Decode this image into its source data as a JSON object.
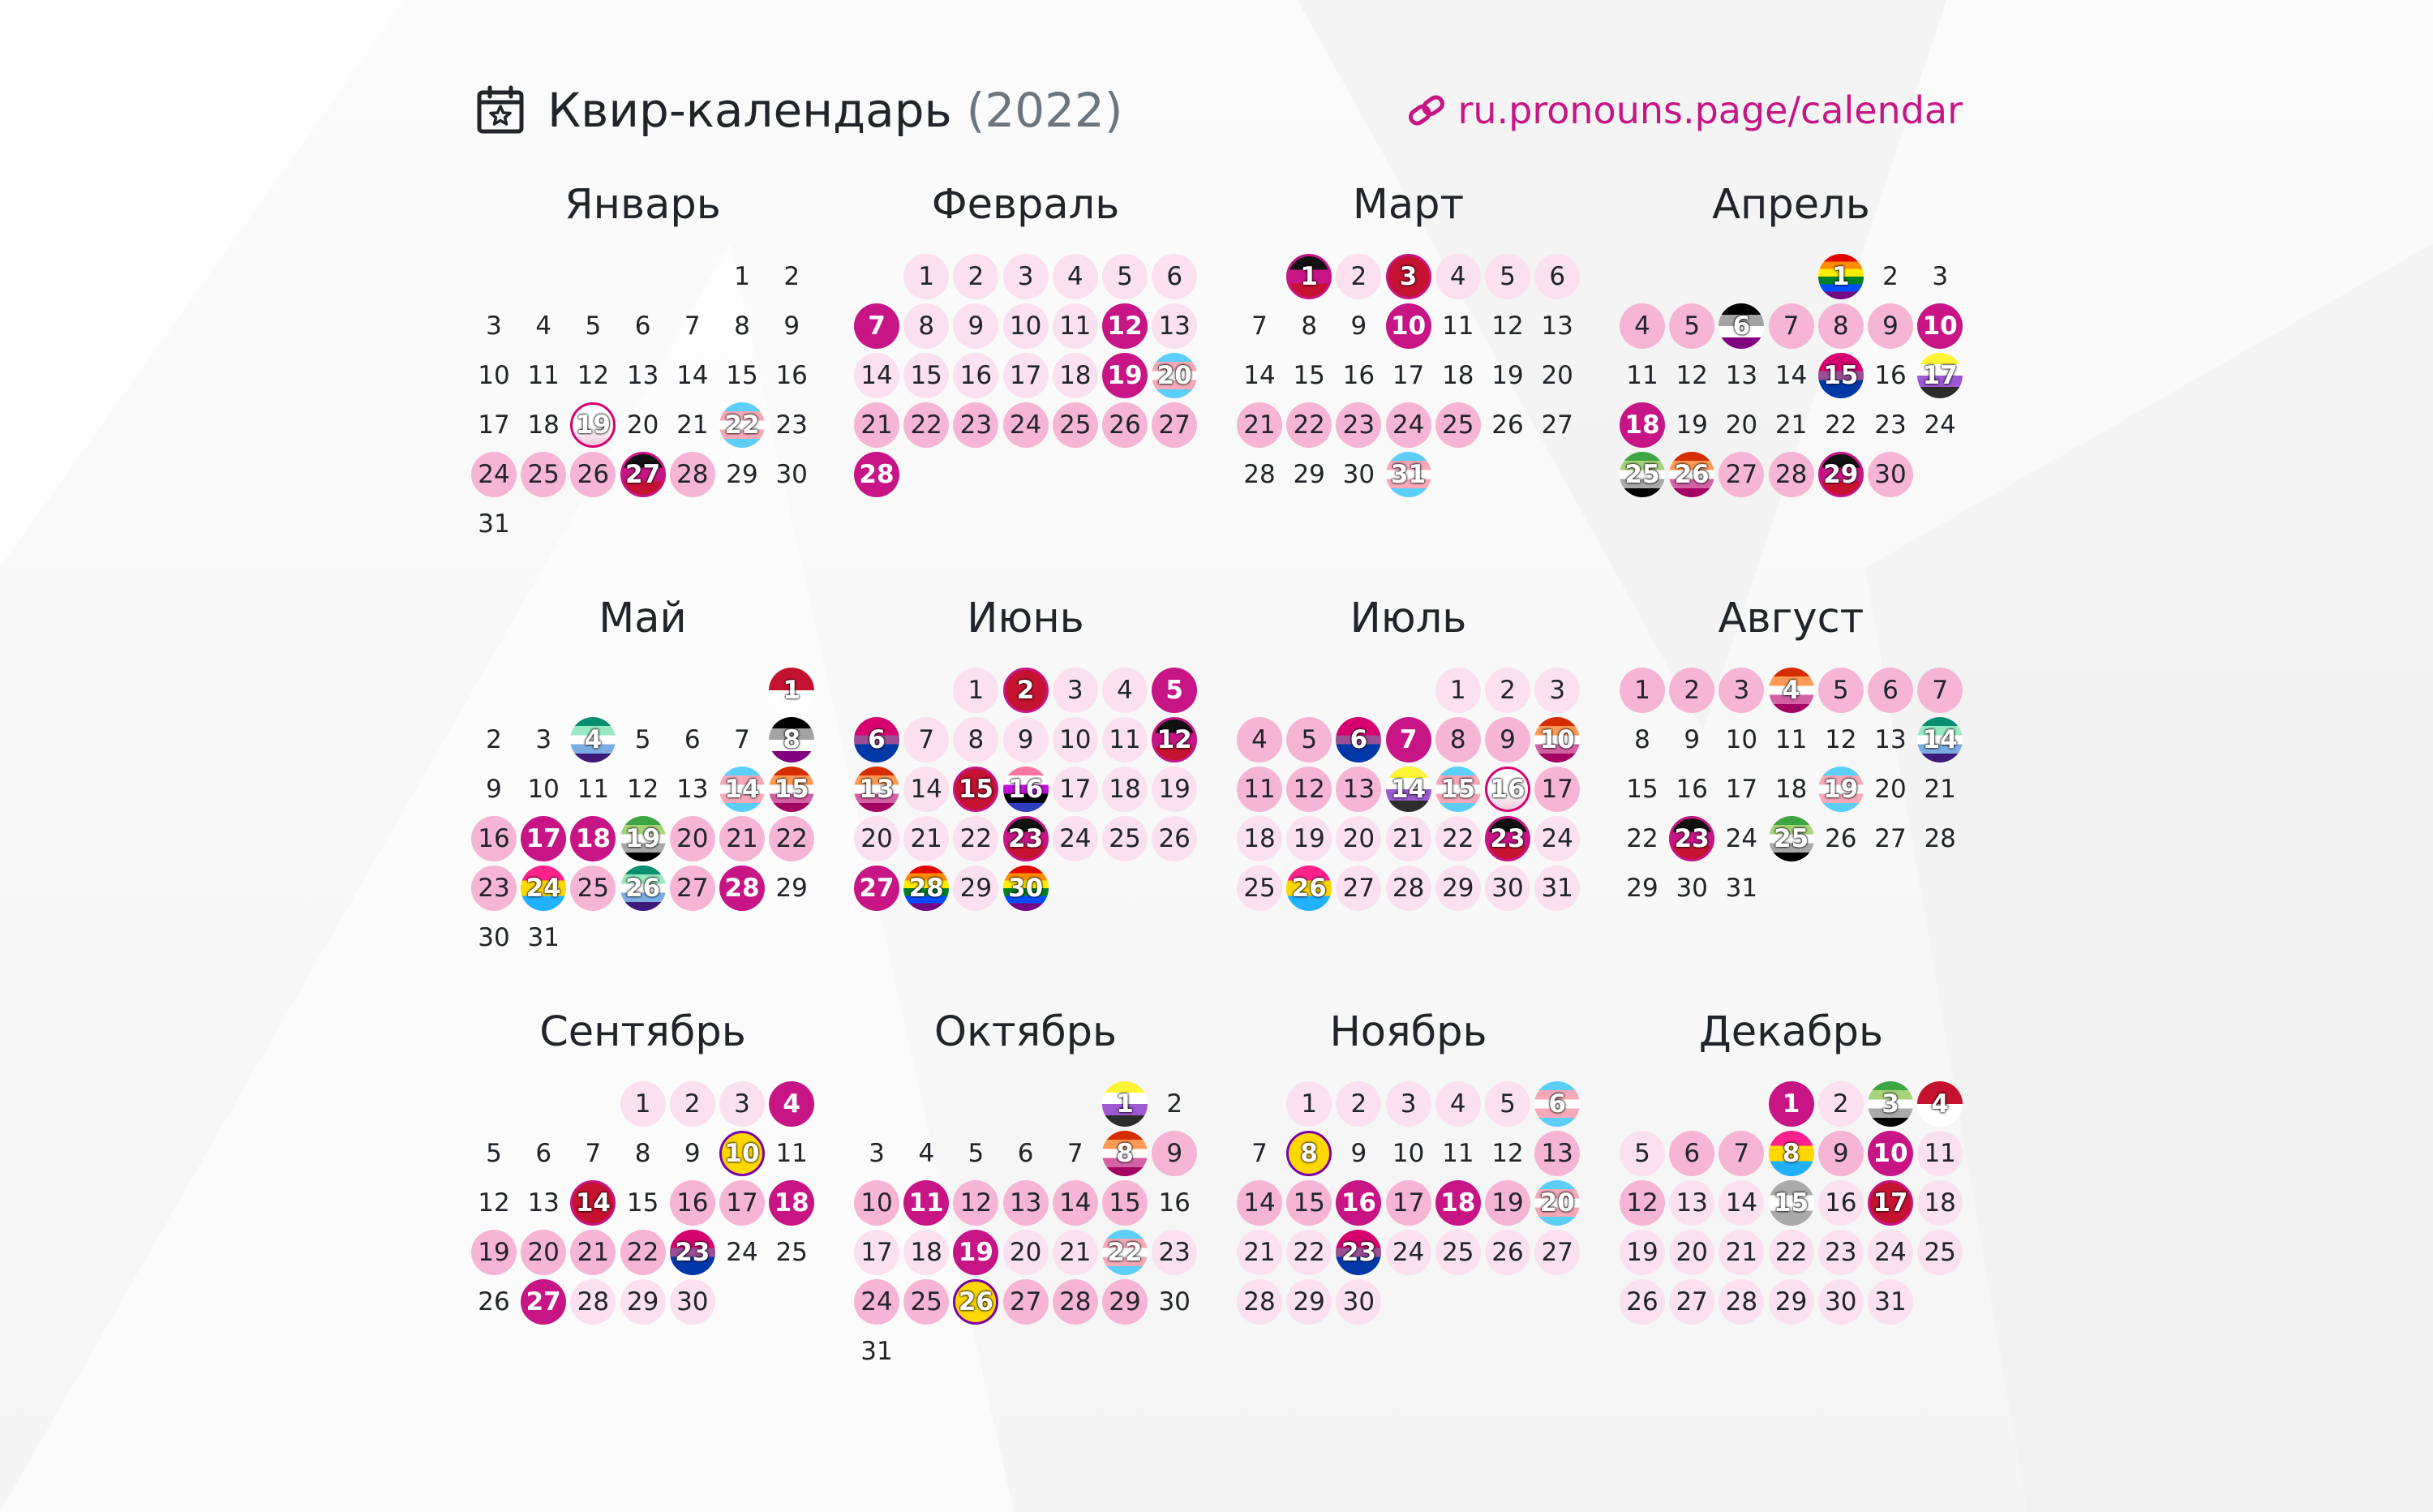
{
  "header": {
    "title": "Квир-календарь",
    "year": "(2022)",
    "url": "ru.pronouns.page/calendar",
    "icons": [
      "calendar-star-icon",
      "link-icon"
    ],
    "accent_color": "#c71585"
  },
  "colors": {
    "light": "#fbe1ef",
    "medium": "#f6b5d5",
    "strong": "#c71585",
    "text": "#212529",
    "muted": "#6c757d"
  },
  "flags": {
    "rainbow": [
      "#e40303",
      "#ff8c00",
      "#ffed00",
      "#008026",
      "#004dff",
      "#750787"
    ],
    "progress": [
      "#e40303",
      "#ff8c00",
      "#ffed00",
      "#008026",
      "#004dff",
      "#750787"
    ],
    "trans": [
      "#5bcefa",
      "#f5a9b8",
      "#ffffff",
      "#f5a9b8",
      "#5bcefa"
    ],
    "bi": [
      "#d60270",
      "#d60270",
      "#9b4f96",
      "#0038a8",
      "#0038a8"
    ],
    "pan": [
      "#ff218c",
      "#ffd800",
      "#21b1ff"
    ],
    "ace": [
      "#000000",
      "#a3a3a3",
      "#ffffff",
      "#800080"
    ],
    "aro": [
      "#3da542",
      "#a7d379",
      "#ffffff",
      "#a9a9a9",
      "#000000"
    ],
    "lesbian": [
      "#d52d00",
      "#ff9a56",
      "#ffffff",
      "#d362a4",
      "#a30262"
    ],
    "nonbinary": [
      "#fcf434",
      "#ffffff",
      "#9c59d1",
      "#2c2c2c"
    ],
    "genderfluid": [
      "#ff76a4",
      "#ffffff",
      "#c011d7",
      "#000000",
      "#2f3cbe"
    ],
    "mlm": [
      "#078d70",
      "#98e8c1",
      "#ffffff",
      "#7bade2",
      "#3d1a78"
    ],
    "intersex": [
      "#ffd800"
    ],
    "agender": [
      "#000000",
      "#bcc4c7",
      "#ffffff",
      "#b7f684",
      "#ffffff",
      "#bcc4c7",
      "#000000"
    ],
    "polyam": [
      "#0000ff",
      "#ff0000",
      "#000000"
    ],
    "redribbon": [
      "#c41230"
    ],
    "blackmix": [
      "#111111",
      "#c71585",
      "#c41230"
    ],
    "hiv": [
      "#c41230",
      "#ffffff"
    ],
    "greyace": [
      "#aaaaaa",
      "#ffffff",
      "#aaaaaa"
    ]
  },
  "months": [
    {
      "name": "Январь",
      "start": 5,
      "days": 31,
      "events": {
        "19": "bi-white",
        "22": "trans",
        "24": "medium",
        "25": "medium",
        "26": "medium",
        "27": "blackmix",
        "28": "medium"
      }
    },
    {
      "name": "Февраль",
      "start": 1,
      "days": 28,
      "events": {
        "1": "light",
        "2": "light",
        "3": "light",
        "4": "light",
        "5": "light",
        "6": "light",
        "7": "strong",
        "8": "light",
        "9": "light",
        "10": "light",
        "11": "light",
        "12": "strong",
        "13": "light",
        "14": "light",
        "15": "light",
        "16": "light",
        "17": "light",
        "18": "light",
        "19": "strong",
        "20": "trans",
        "21": "medium",
        "22": "medium",
        "23": "medium",
        "24": "medium",
        "25": "medium",
        "26": "medium",
        "27": "medium",
        "28": "strong"
      }
    },
    {
      "name": "Март",
      "start": 1,
      "days": 31,
      "events": {
        "1": "blackmix",
        "2": "light",
        "3": "redribbon",
        "4": "light",
        "5": "light",
        "6": "light",
        "10": "strong",
        "21": "medium",
        "22": "medium",
        "23": "medium",
        "24": "medium",
        "25": "medium",
        "31": "trans"
      }
    },
    {
      "name": "Апрель",
      "start": 4,
      "days": 30,
      "events": {
        "1": "rainbow",
        "4": "medium",
        "5": "medium",
        "6": "ace",
        "7": "medium",
        "8": "medium",
        "9": "medium",
        "10": "strong",
        "15": "bi",
        "17": "nonbinary",
        "18": "strong",
        "25": "aro",
        "26": "lesbian",
        "27": "medium",
        "28": "medium",
        "29": "blackmix",
        "30": "medium"
      }
    },
    {
      "name": "Май",
      "start": 6,
      "days": 31,
      "events": {
        "1": "hiv",
        "4": "mlm",
        "8": "ace",
        "14": "trans",
        "15": "lesbian",
        "16": "medium",
        "17": "strong",
        "18": "strong",
        "19": "aro",
        "20": "medium",
        "21": "medium",
        "22": "medium",
        "23": "medium",
        "24": "pan",
        "25": "medium",
        "26": "mlm",
        "27": "medium",
        "28": "strong"
      }
    },
    {
      "name": "Июнь",
      "start": 2,
      "days": 30,
      "events": {
        "1": "light",
        "2": "redribbon",
        "3": "light",
        "4": "light",
        "5": "strong",
        "6": "bi",
        "7": "light",
        "8": "light",
        "9": "light",
        "10": "light",
        "11": "light",
        "12": "blackmix",
        "13": "lesbian",
        "14": "light",
        "15": "redribbon",
        "16": "genderfluid",
        "17": "light",
        "18": "light",
        "19": "light",
        "20": "light",
        "21": "light",
        "22": "light",
        "23": "blackmix",
        "24": "light",
        "25": "light",
        "26": "light",
        "27": "strong",
        "28": "progress",
        "29": "light",
        "30": "rainbow"
      }
    },
    {
      "name": "Июль",
      "start": 4,
      "days": 31,
      "events": {
        "1": "light",
        "2": "light",
        "3": "light",
        "4": "medium",
        "5": "medium",
        "6": "bi",
        "7": "strong",
        "8": "medium",
        "9": "medium",
        "10": "lesbian",
        "11": "medium",
        "12": "medium",
        "13": "medium",
        "14": "nonbinary",
        "15": "trans",
        "16": "bi-white",
        "17": "medium",
        "18": "light",
        "19": "light",
        "20": "light",
        "21": "light",
        "22": "light",
        "23": "blackmix",
        "24": "light",
        "25": "light",
        "26": "pan",
        "27": "light",
        "28": "light",
        "29": "light",
        "30": "light",
        "31": "light"
      }
    },
    {
      "name": "Август",
      "start": 0,
      "days": 31,
      "events": {
        "1": "medium",
        "2": "medium",
        "3": "medium",
        "4": "lesbian",
        "5": "medium",
        "6": "medium",
        "7": "medium",
        "14": "mlm",
        "19": "trans",
        "23": "blackmix",
        "25": "aro"
      }
    },
    {
      "name": "Сентябрь",
      "start": 3,
      "days": 30,
      "events": {
        "1": "light",
        "2": "light",
        "3": "light",
        "4": "strong",
        "10": "intersex",
        "14": "redribbon",
        "16": "medium",
        "17": "medium",
        "18": "strong",
        "19": "medium",
        "20": "medium",
        "21": "medium",
        "22": "medium",
        "23": "bi",
        "27": "strong",
        "28": "light",
        "29": "light",
        "30": "light"
      }
    },
    {
      "name": "Октябрь",
      "start": 5,
      "days": 31,
      "events": {
        "1": "nonbinary",
        "8": "lesbian",
        "9": "medium",
        "10": "medium",
        "11": "strong",
        "12": "medium",
        "13": "medium",
        "14": "medium",
        "15": "medium",
        "17": "light",
        "18": "light",
        "19": "strong",
        "20": "light",
        "21": "light",
        "22": "trans",
        "23": "light",
        "24": "medium",
        "25": "medium",
        "26": "intersex",
        "27": "medium",
        "28": "medium",
        "29": "medium"
      }
    },
    {
      "name": "Ноябрь",
      "start": 1,
      "days": 30,
      "events": {
        "1": "light",
        "2": "light",
        "3": "light",
        "4": "light",
        "5": "light",
        "6": "trans",
        "8": "intersex",
        "13": "medium",
        "14": "medium",
        "15": "medium",
        "16": "strong",
        "17": "medium",
        "18": "strong",
        "19": "medium",
        "20": "trans",
        "21": "light",
        "22": "light",
        "23": "bi",
        "24": "light",
        "25": "light",
        "26": "light",
        "27": "light",
        "28": "light",
        "29": "light",
        "30": "light"
      }
    },
    {
      "name": "Декабрь",
      "start": 3,
      "days": 31,
      "events": {
        "1": "strong",
        "2": "light",
        "3": "aro",
        "4": "hiv",
        "5": "light",
        "6": "medium",
        "7": "medium",
        "8": "pan",
        "9": "medium",
        "10": "strong",
        "11": "light",
        "12": "medium",
        "13": "light",
        "14": "light",
        "15": "greyace",
        "16": "light",
        "17": "redribbon",
        "18": "light",
        "19": "light",
        "20": "light",
        "21": "light",
        "22": "light",
        "23": "light",
        "24": "light",
        "25": "light",
        "26": "light",
        "27": "light",
        "28": "light",
        "29": "light",
        "30": "light",
        "31": "light"
      }
    }
  ]
}
